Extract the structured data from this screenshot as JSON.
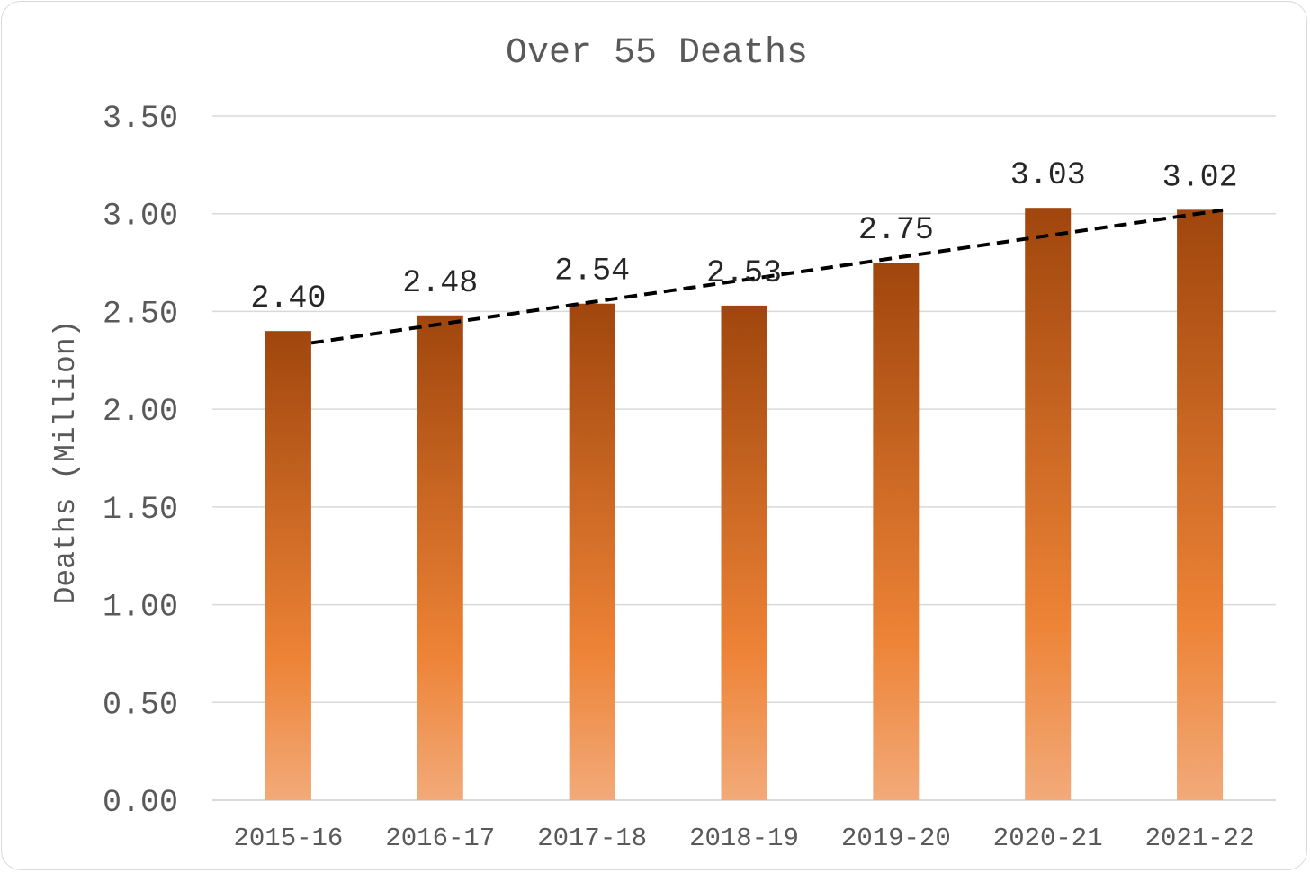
{
  "chart_data": {
    "type": "bar",
    "title": "Over 55 Deaths",
    "xlabel": "",
    "ylabel": "Deaths (Million)",
    "categories": [
      "2015-16",
      "2016-17",
      "2017-18",
      "2018-19",
      "2019-20",
      "2020-21",
      "2021-22"
    ],
    "values": [
      2.4,
      2.48,
      2.54,
      2.53,
      2.75,
      3.03,
      3.02
    ],
    "data_labels": [
      "2.40",
      "2.48",
      "2.54",
      "2.53",
      "2.75",
      "3.03",
      "3.02"
    ],
    "ylim": [
      0,
      3.5
    ],
    "yticks": [
      "0.00",
      "0.50",
      "1.00",
      "1.50",
      "2.00",
      "2.50",
      "3.00",
      "3.50"
    ],
    "grid": true,
    "legend": "none",
    "trendline": {
      "type": "linear",
      "style": "dashed",
      "color": "#000000"
    },
    "colors": {
      "bar_top": "#a0460d",
      "bar_mid": "#ed8336",
      "bar_bottom": "#f2aa79",
      "text": "#595959",
      "gridline": "#d9d9d9"
    }
  }
}
